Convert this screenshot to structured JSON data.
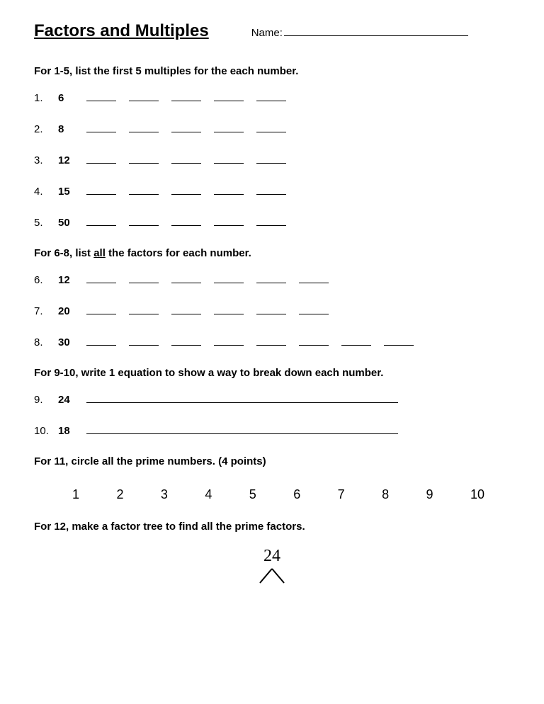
{
  "header": {
    "title": "Factors and Multiples",
    "name_label": "Name:"
  },
  "section1": {
    "instruction": "For 1-5, list the first 5 multiples for the each number.",
    "problems": [
      {
        "num": "1.",
        "value": "6",
        "blanks": 5
      },
      {
        "num": "2.",
        "value": "8",
        "blanks": 5
      },
      {
        "num": "3.",
        "value": "12",
        "blanks": 5
      },
      {
        "num": "4.",
        "value": "15",
        "blanks": 5
      },
      {
        "num": "5.",
        "value": "50",
        "blanks": 5
      }
    ]
  },
  "section2": {
    "instruction_pre": "For 6-8, list ",
    "instruction_underline": "all",
    "instruction_post": " the factors for each number.",
    "problems": [
      {
        "num": "6.",
        "value": "12",
        "blanks": 6
      },
      {
        "num": "7.",
        "value": "20",
        "blanks": 6
      },
      {
        "num": "8.",
        "value": "30",
        "blanks": 8
      }
    ]
  },
  "section3": {
    "instruction": "For 9-10, write 1 equation to show a way to break down each number.",
    "problems": [
      {
        "num": "9.",
        "value": "24"
      },
      {
        "num": "10.",
        "value": "18"
      }
    ]
  },
  "section4": {
    "instruction": "For 11, circle all the prime numbers. (4 points)",
    "numbers": [
      "1",
      "2",
      "3",
      "4",
      "5",
      "6",
      "7",
      "8",
      "9",
      "10"
    ]
  },
  "section5": {
    "instruction": "For 12, make a factor tree to find all the prime factors.",
    "root": "24"
  },
  "style": {
    "background_color": "#ffffff",
    "text_color": "#000000",
    "title_fontsize": 24,
    "body_fontsize": 15,
    "prime_fontsize": 18,
    "tree_fontsize": 24,
    "font_family": "Comic Sans MS",
    "blank_short_width": 42,
    "blank_long_width": 440,
    "blank_gap": 18
  }
}
